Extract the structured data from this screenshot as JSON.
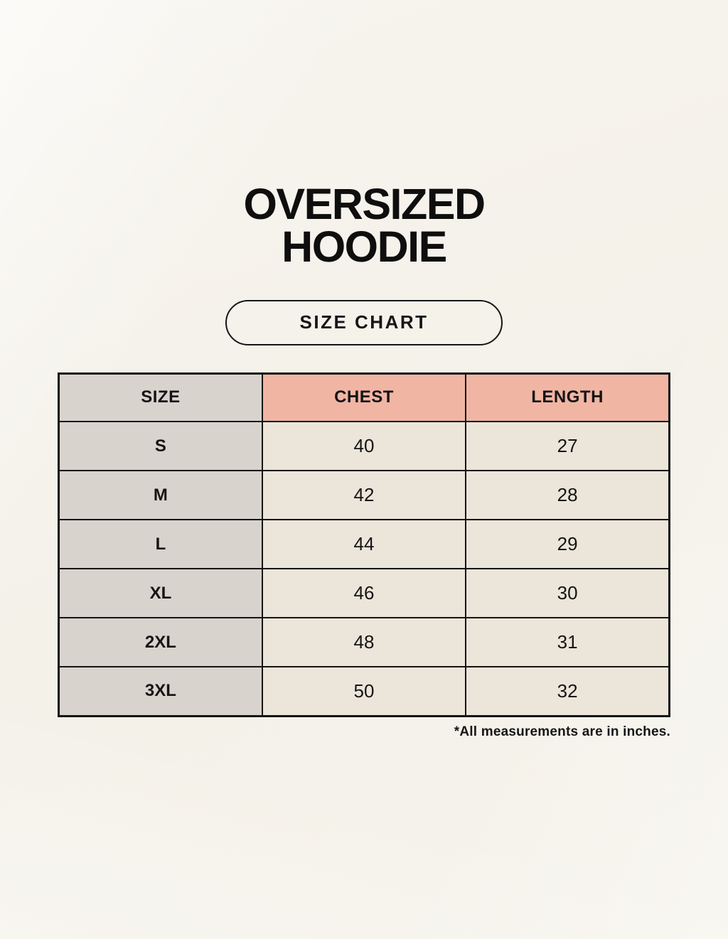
{
  "header": {
    "title_lines": [
      "OVERSIZED",
      "HOODIE"
    ],
    "badge_label": "SIZE CHART"
  },
  "chart_data": {
    "type": "table",
    "title": "OVERSIZED HOODIE",
    "subtitle": "SIZE CHART",
    "columns": [
      "SIZE",
      "CHEST",
      "LENGTH"
    ],
    "rows": [
      [
        "S",
        40,
        27
      ],
      [
        "M",
        42,
        28
      ],
      [
        "L",
        44,
        29
      ],
      [
        "XL",
        46,
        30
      ],
      [
        "2XL",
        48,
        31
      ],
      [
        "3XL",
        50,
        32
      ]
    ],
    "units": "inches"
  },
  "footer": {
    "note": "*All measurements are in inches."
  },
  "colors": {
    "page-bg": "#f4f1e9",
    "cell-gray": "#d9d3cd",
    "cell-pink": "#f1b5a4",
    "cell-cream": "#ebe5da",
    "line-black": "#141414"
  }
}
